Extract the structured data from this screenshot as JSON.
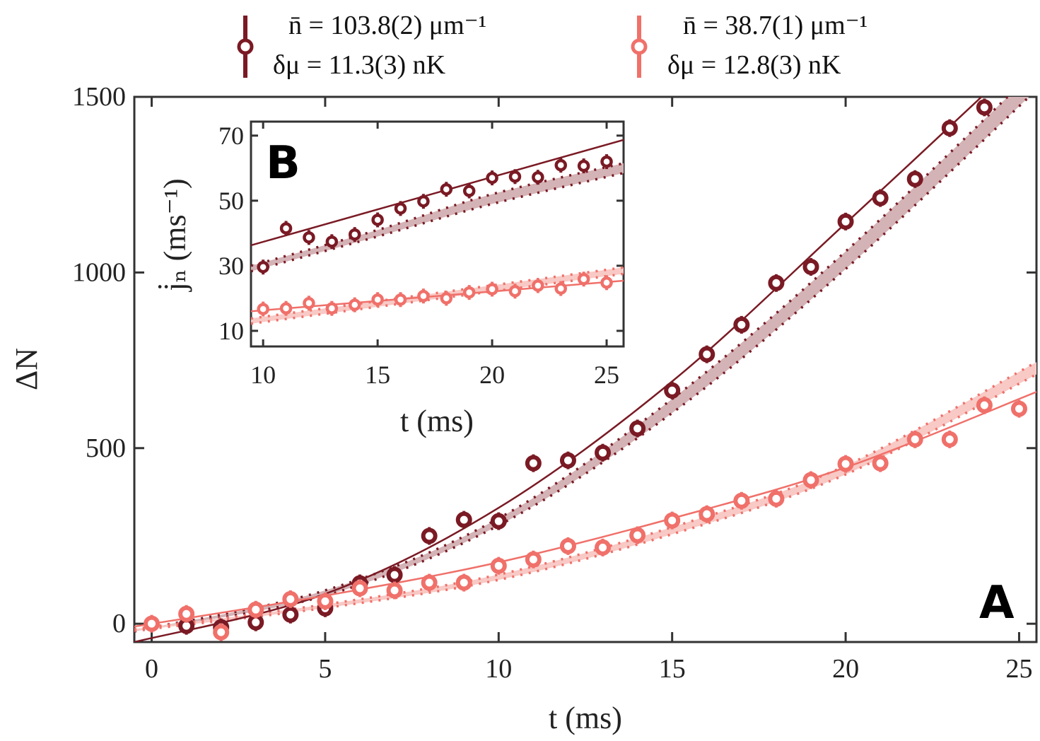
{
  "colors": {
    "dark": "#7a1a24",
    "light": "#f0706a",
    "dark_band": "#d4b3b6",
    "light_band": "#f8c9c5"
  },
  "legend": [
    {
      "line1": "n̄ = 103.8(2) μm⁻¹",
      "line2": "δμ = 11.3(3) nK",
      "color_key": "dark"
    },
    {
      "line1": "n̄ = 38.7(1) μm⁻¹",
      "line2": "δμ = 12.8(3) nK",
      "color_key": "light"
    }
  ],
  "chart_data": [
    {
      "panel": "A",
      "type": "scatter",
      "xlabel": "t (ms)",
      "ylabel": "ΔN",
      "xlim": [
        -0.5,
        25.5
      ],
      "ylim": [
        -52,
        1500
      ],
      "xticks": [
        "0",
        "5",
        "10",
        "15",
        "20",
        "25"
      ],
      "yticks": [
        "0",
        "500",
        "1000",
        "1500"
      ],
      "grid": false,
      "series": [
        {
          "color_key": "dark",
          "x": [
            1,
            2,
            3,
            4,
            5,
            6,
            7,
            8,
            9,
            10,
            11,
            12,
            13,
            14,
            15,
            16,
            17,
            18,
            19,
            20,
            21,
            22,
            23,
            24
          ],
          "y": [
            -6,
            -10,
            4,
            26,
            44,
            115,
            139,
            250,
            296,
            292,
            457,
            465,
            487,
            556,
            664,
            767,
            851,
            970,
            1016,
            1145,
            1212,
            1266,
            1411,
            1470
          ]
        },
        {
          "color_key": "light",
          "x": [
            0,
            1,
            2,
            3,
            4,
            5,
            6,
            7,
            8,
            9,
            10,
            11,
            12,
            13,
            14,
            15,
            16,
            17,
            18,
            19,
            20,
            21,
            22,
            23,
            24,
            25
          ],
          "y": [
            0,
            28,
            -24,
            40,
            70,
            64,
            101,
            95,
            117,
            117,
            165,
            183,
            221,
            217,
            252,
            294,
            312,
            350,
            356,
            409,
            455,
            457,
            525,
            525,
            622,
            612
          ]
        }
      ],
      "fits": [
        {
          "color_key": "dark",
          "style": "solid",
          "x": [
            -0.5,
            5,
            10,
            15,
            20,
            25
          ],
          "y": [
            -52,
            85,
            330,
            690,
            1140,
            1600
          ]
        },
        {
          "color_key": "dark",
          "style": "band",
          "x": [
            -0.5,
            5,
            10,
            15,
            20,
            25.5
          ],
          "upper": [
            -20,
            95,
            300,
            640,
            1060,
            1580
          ],
          "lower": [
            -22,
            80,
            280,
            600,
            1010,
            1520
          ]
        },
        {
          "color_key": "light",
          "style": "solid",
          "x": [
            -0.5,
            5,
            10,
            15,
            20,
            25.5
          ],
          "y": [
            -8,
            80,
            175,
            300,
            445,
            660
          ]
        },
        {
          "color_key": "light",
          "style": "band",
          "x": [
            -0.5,
            5,
            10,
            15,
            20,
            25.5
          ],
          "upper": [
            -15,
            55,
            140,
            275,
            450,
            745
          ],
          "lower": [
            -20,
            45,
            125,
            255,
            425,
            710
          ]
        }
      ]
    },
    {
      "panel": "B",
      "type": "scatter",
      "xlabel": "t (ms)",
      "ylabel": "j̇ₙ (ms⁻¹)",
      "xlim": [
        9.47,
        25.74
      ],
      "ylim": [
        5.2,
        74.3
      ],
      "xticks": [
        "10",
        "15",
        "20",
        "25"
      ],
      "yticks": [
        "10",
        "30",
        "50",
        "70"
      ],
      "grid": false,
      "series": [
        {
          "color_key": "dark",
          "x": [
            10,
            11,
            12,
            13,
            14,
            15,
            16,
            17,
            18,
            19,
            20,
            21,
            22,
            23,
            24,
            25
          ],
          "y": [
            29.6,
            41.5,
            38.7,
            37.4,
            39.6,
            44.1,
            47.6,
            49.8,
            53.5,
            53.0,
            57.0,
            57.4,
            57.2,
            60.9,
            60.7,
            62.0
          ]
        },
        {
          "color_key": "light",
          "x": [
            10,
            11,
            12,
            13,
            14,
            15,
            16,
            17,
            18,
            19,
            20,
            21,
            22,
            23,
            24,
            25
          ],
          "y": [
            16.7,
            16.9,
            18.5,
            16.9,
            18.0,
            19.6,
            19.6,
            20.7,
            20.0,
            21.8,
            22.8,
            22.2,
            23.9,
            23.0,
            25.9,
            24.8
          ]
        }
      ],
      "fits": [
        {
          "color_key": "dark",
          "style": "solid",
          "x": [
            9.47,
            25.74
          ],
          "y": [
            36.3,
            68.7
          ]
        },
        {
          "color_key": "dark",
          "style": "band",
          "x": [
            9.47,
            15,
            20,
            25.74
          ],
          "upper": [
            30,
            41,
            52,
            61.5
          ],
          "lower": [
            28.3,
            39,
            49,
            58.5
          ]
        },
        {
          "color_key": "light",
          "style": "solid",
          "x": [
            9.47,
            25.74
          ],
          "y": [
            16,
            25.4
          ]
        },
        {
          "color_key": "light",
          "style": "band",
          "x": [
            9.47,
            25.74
          ],
          "upper": [
            13.8,
            29.5
          ],
          "lower": [
            12.2,
            27.5
          ]
        }
      ]
    }
  ]
}
